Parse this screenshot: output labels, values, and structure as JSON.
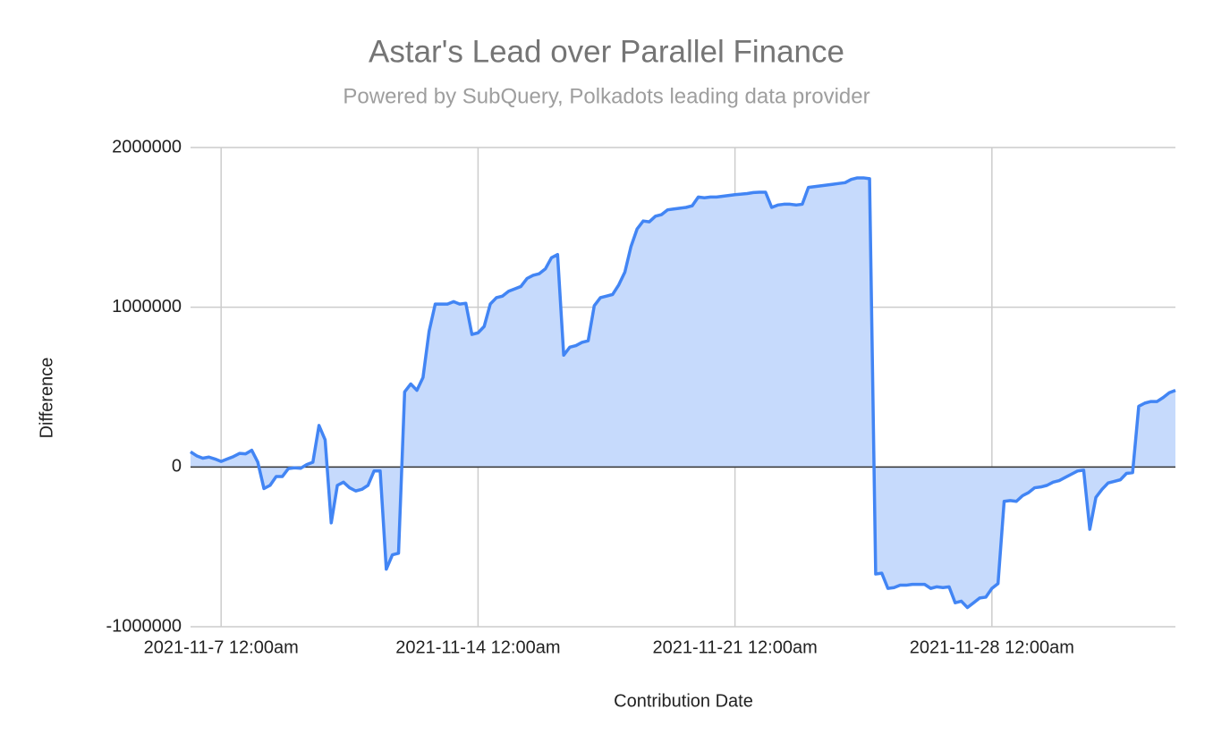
{
  "chart_data": {
    "type": "area",
    "title": "Astar's Lead over Parallel Finance",
    "subtitle": "Powered by SubQuery, Polkadots leading data provider",
    "x_label": "Contribution Date",
    "y_label": "Difference",
    "color": "#4285f4",
    "area_color": "#c6dafc",
    "grid": true,
    "x": [
      "2021-11-06 04:00",
      "2021-11-06 08:00",
      "2021-11-06 12:00",
      "2021-11-06 16:00",
      "2021-11-06 20:00",
      "2021-11-07 00:00",
      "2021-11-07 04:00",
      "2021-11-07 08:00",
      "2021-11-07 12:00",
      "2021-11-07 16:00",
      "2021-11-07 20:00",
      "2021-11-08 00:00",
      "2021-11-08 04:00",
      "2021-11-08 08:00",
      "2021-11-08 12:00",
      "2021-11-08 16:00",
      "2021-11-08 20:00",
      "2021-11-09 00:00",
      "2021-11-09 04:00",
      "2021-11-09 08:00",
      "2021-11-09 12:00",
      "2021-11-09 16:00",
      "2021-11-09 20:00",
      "2021-11-10 00:00",
      "2021-11-10 04:00",
      "2021-11-10 08:00",
      "2021-11-10 12:00",
      "2021-11-10 16:00",
      "2021-11-10 20:00",
      "2021-11-11 00:00",
      "2021-11-11 04:00",
      "2021-11-11 08:00",
      "2021-11-11 12:00",
      "2021-11-11 16:00",
      "2021-11-11 20:00",
      "2021-11-12 00:00",
      "2021-11-12 04:00",
      "2021-11-12 08:00",
      "2021-11-12 12:00",
      "2021-11-12 16:00",
      "2021-11-12 20:00",
      "2021-11-13 00:00",
      "2021-11-13 04:00",
      "2021-11-13 08:00",
      "2021-11-13 12:00",
      "2021-11-13 16:00",
      "2021-11-13 20:00",
      "2021-11-14 00:00",
      "2021-11-14 04:00",
      "2021-11-14 08:00",
      "2021-11-14 12:00",
      "2021-11-14 16:00",
      "2021-11-14 20:00",
      "2021-11-15 00:00",
      "2021-11-15 04:00",
      "2021-11-15 08:00",
      "2021-11-15 12:00",
      "2021-11-15 16:00",
      "2021-11-15 20:00",
      "2021-11-16 00:00",
      "2021-11-16 04:00",
      "2021-11-16 08:00",
      "2021-11-16 12:00",
      "2021-11-16 16:00",
      "2021-11-16 20:00",
      "2021-11-17 00:00",
      "2021-11-17 04:00",
      "2021-11-17 08:00",
      "2021-11-17 12:00",
      "2021-11-17 16:00",
      "2021-11-17 20:00",
      "2021-11-18 00:00",
      "2021-11-18 04:00",
      "2021-11-18 08:00",
      "2021-11-18 12:00",
      "2021-11-18 16:00",
      "2021-11-18 20:00",
      "2021-11-19 00:00",
      "2021-11-19 04:00",
      "2021-11-19 08:00",
      "2021-11-19 12:00",
      "2021-11-19 16:00",
      "2021-11-19 20:00",
      "2021-11-20 00:00",
      "2021-11-20 04:00",
      "2021-11-20 08:00",
      "2021-11-20 12:00",
      "2021-11-20 16:00",
      "2021-11-20 20:00",
      "2021-11-21 00:00",
      "2021-11-21 04:00",
      "2021-11-21 08:00",
      "2021-11-21 12:00",
      "2021-11-21 16:00",
      "2021-11-21 20:00",
      "2021-11-22 00:00",
      "2021-11-22 04:00",
      "2021-11-22 08:00",
      "2021-11-22 12:00",
      "2021-11-22 16:00",
      "2021-11-22 20:00",
      "2021-11-23 00:00",
      "2021-11-23 04:00",
      "2021-11-23 08:00",
      "2021-11-23 12:00",
      "2021-11-23 16:00",
      "2021-11-23 20:00",
      "2021-11-24 00:00",
      "2021-11-24 04:00",
      "2021-11-24 08:00",
      "2021-11-24 12:00",
      "2021-11-24 16:00",
      "2021-11-24 20:00",
      "2021-11-25 00:00",
      "2021-11-25 04:00",
      "2021-11-25 08:00",
      "2021-11-25 12:00",
      "2021-11-25 16:00",
      "2021-11-25 20:00",
      "2021-11-26 00:00",
      "2021-11-26 04:00",
      "2021-11-26 08:00",
      "2021-11-26 12:00",
      "2021-11-26 16:00",
      "2021-11-26 20:00",
      "2021-11-27 00:00",
      "2021-11-27 04:00",
      "2021-11-27 08:00",
      "2021-11-27 12:00",
      "2021-11-27 16:00",
      "2021-11-27 20:00",
      "2021-11-28 00:00",
      "2021-11-28 04:00",
      "2021-11-28 08:00",
      "2021-11-28 12:00",
      "2021-11-28 16:00",
      "2021-11-28 20:00",
      "2021-11-29 00:00",
      "2021-11-29 04:00",
      "2021-11-29 08:00",
      "2021-11-29 12:00",
      "2021-11-29 16:00",
      "2021-11-29 20:00",
      "2021-11-30 00:00",
      "2021-11-30 04:00",
      "2021-11-30 08:00",
      "2021-11-30 12:00",
      "2021-11-30 16:00",
      "2021-11-30 20:00",
      "2021-12-01 00:00",
      "2021-12-01 04:00",
      "2021-12-01 08:00",
      "2021-12-01 12:00",
      "2021-12-01 16:00",
      "2021-12-01 20:00",
      "2021-12-02 00:00",
      "2021-12-02 04:00",
      "2021-12-02 08:00",
      "2021-12-02 12:00",
      "2021-12-02 16:00",
      "2021-12-02 20:00",
      "2021-12-03 00:00"
    ],
    "values": [
      95000,
      70000,
      55000,
      62000,
      50000,
      35000,
      50000,
      65000,
      85000,
      82000,
      105000,
      30000,
      -135000,
      -115000,
      -60000,
      -60000,
      -10000,
      -5000,
      -8000,
      15000,
      30000,
      260000,
      170000,
      -350000,
      -115000,
      -95000,
      -130000,
      -150000,
      -140000,
      -115000,
      -25000,
      -25000,
      -640000,
      -550000,
      -540000,
      470000,
      520000,
      480000,
      560000,
      850000,
      1020000,
      1020000,
      1020000,
      1035000,
      1020000,
      1025000,
      830000,
      840000,
      880000,
      1020000,
      1060000,
      1070000,
      1100000,
      1115000,
      1130000,
      1180000,
      1200000,
      1210000,
      1240000,
      1310000,
      1330000,
      700000,
      750000,
      760000,
      780000,
      790000,
      1010000,
      1060000,
      1070000,
      1080000,
      1140000,
      1220000,
      1380000,
      1490000,
      1540000,
      1535000,
      1570000,
      1580000,
      1610000,
      1615000,
      1620000,
      1625000,
      1635000,
      1690000,
      1685000,
      1690000,
      1690000,
      1695000,
      1700000,
      1705000,
      1708000,
      1712000,
      1718000,
      1720000,
      1720000,
      1625000,
      1640000,
      1645000,
      1645000,
      1640000,
      1645000,
      1750000,
      1755000,
      1760000,
      1765000,
      1770000,
      1775000,
      1780000,
      1800000,
      1810000,
      1810000,
      1805000,
      -670000,
      -665000,
      -760000,
      -755000,
      -740000,
      -740000,
      -735000,
      -735000,
      -735000,
      -760000,
      -750000,
      -755000,
      -750000,
      -850000,
      -840000,
      -880000,
      -850000,
      -820000,
      -815000,
      -760000,
      -730000,
      -215000,
      -210000,
      -215000,
      -180000,
      -160000,
      -130000,
      -125000,
      -115000,
      -95000,
      -85000,
      -65000,
      -45000,
      -25000,
      -20000,
      -390000,
      -190000,
      -140000,
      -100000,
      -90000,
      -80000,
      -40000,
      -35000,
      380000,
      400000,
      410000,
      410000,
      435000,
      465000,
      480000
    ],
    "xlim": [
      "2021-11-06 04:00",
      "2021-12-03 00:00"
    ],
    "xticks": [
      {
        "value": "2021-11-07 00:00",
        "label": "2021-11-7 12:00am"
      },
      {
        "value": "2021-11-14 00:00",
        "label": "2021-11-14 12:00am"
      },
      {
        "value": "2021-11-21 00:00",
        "label": "2021-11-21 12:00am"
      },
      {
        "value": "2021-11-28 00:00",
        "label": "2021-11-28 12:00am"
      }
    ],
    "ylim": [
      -1000000,
      2000000
    ],
    "yticks": [
      -1000000,
      0,
      1000000,
      2000000
    ]
  }
}
